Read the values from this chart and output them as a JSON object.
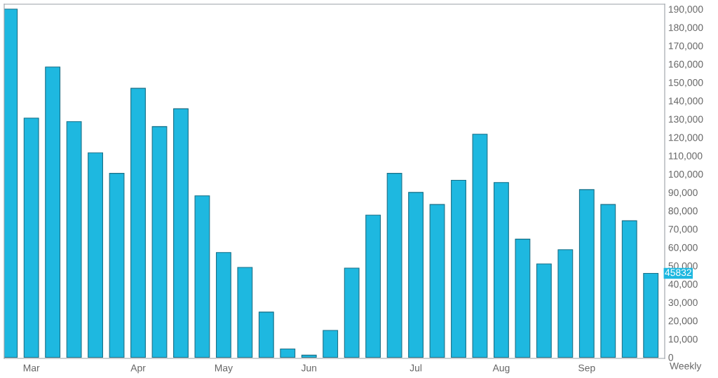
{
  "chart_data": {
    "type": "bar",
    "color": "#1eb8e0",
    "categories": [
      null,
      "Mar",
      null,
      null,
      null,
      null,
      "Apr",
      null,
      null,
      null,
      "May",
      null,
      null,
      null,
      "Jun",
      null,
      null,
      null,
      null,
      "Jul",
      null,
      null,
      null,
      "Aug",
      null,
      null,
      null,
      "Sep",
      null,
      null,
      null
    ],
    "values": [
      190000,
      130500,
      158400,
      128600,
      111600,
      100400,
      146800,
      125900,
      135600,
      88100,
      57200,
      49100,
      24700,
      4600,
      1200,
      14700,
      48700,
      77600,
      100400,
      90000,
      83400,
      96600,
      121700,
      95400,
      64500,
      51000,
      58700,
      91500,
      83400,
      74500,
      45832
    ],
    "ylim": [
      0,
      190000
    ],
    "yticks": [
      0,
      {
        "value": 10000,
        "label": "10,000"
      },
      {
        "value": 20000,
        "label": "20,000"
      },
      {
        "value": 30000,
        "label": "30,000"
      },
      {
        "value": 40000,
        "label": "40,000"
      },
      {
        "value": 50000,
        "label": "50,000"
      },
      {
        "value": 60000,
        "label": "60,000"
      },
      {
        "value": 70000,
        "label": "70,000"
      },
      {
        "value": 80000,
        "label": "80,000"
      },
      {
        "value": 90000,
        "label": "90,000"
      },
      {
        "value": 100000,
        "label": "100,000"
      },
      {
        "value": 110000,
        "label": "110,000"
      },
      {
        "value": 120000,
        "label": "120,000"
      },
      {
        "value": 130000,
        "label": "130,000"
      },
      {
        "value": 140000,
        "label": "140,000"
      },
      {
        "value": 150000,
        "label": "150,000"
      },
      {
        "value": 160000,
        "label": "160,000"
      },
      {
        "value": 170000,
        "label": "170,000"
      },
      {
        "value": 180000,
        "label": "180,000"
      },
      {
        "value": 190000,
        "label": "190,000"
      }
    ],
    "annotations": [
      {
        "text": "45832",
        "y": 45832
      },
      "Weekly"
    ],
    "grid": false,
    "legend": false
  }
}
